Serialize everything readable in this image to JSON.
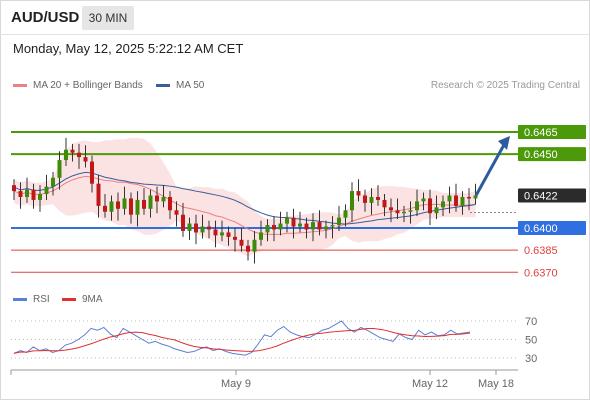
{
  "header": {
    "symbol": "AUD/USD",
    "timeframe": "30 MIN",
    "datetime": "Monday, May 12, 2025 5:22:12 AM CET"
  },
  "legend": {
    "ma20": {
      "label": "MA 20 + Bollinger Bands",
      "color": "#f08080"
    },
    "ma50": {
      "label": "MA 50",
      "color": "#3a5d9c"
    },
    "copyright": "Research © 2025 Trading Central"
  },
  "rsi_legend": {
    "rsi": {
      "label": "RSI",
      "color": "#5b7fd4"
    },
    "ma9": {
      "label": "9MA",
      "color": "#e03030"
    }
  },
  "colors": {
    "green": "#4c9a0a",
    "blue": "#2f6fe0",
    "red": "#e04040",
    "dark": "#2b2b2b",
    "arrow": "#2e5b9e",
    "band": "#fbdede"
  },
  "chart_data": [
    {
      "type": "candlestick",
      "symbol": "AUD/USD",
      "x_tick_labels": [
        "May 9",
        "May 12",
        "May 18"
      ],
      "levels": [
        {
          "value": "0.6465",
          "color": "#4c9a0a",
          "label_style": "filled"
        },
        {
          "value": "0.6450",
          "color": "#4c9a0a",
          "label_style": "filled"
        },
        {
          "value": "0.6422",
          "color": "#2b2b2b",
          "label_style": "filled"
        },
        {
          "value": "0.6400",
          "color": "#2f6fe0",
          "label_style": "filled"
        },
        {
          "value": "0.6385",
          "color": "#e04040",
          "label_style": "text"
        },
        {
          "value": "0.6370",
          "color": "#e04040",
          "label_style": "text"
        }
      ],
      "current_price": 0.6422,
      "forecast_arrow": {
        "from": 0.6422,
        "to": 0.6465
      },
      "close_series": [
        0.6425,
        0.6421,
        0.6426,
        0.6419,
        0.6423,
        0.6428,
        0.6434,
        0.6446,
        0.6453,
        0.6451,
        0.6448,
        0.6445,
        0.643,
        0.6415,
        0.6411,
        0.6418,
        0.6413,
        0.642,
        0.6409,
        0.6419,
        0.6413,
        0.6422,
        0.6418,
        0.6421,
        0.6412,
        0.6409,
        0.6398,
        0.6403,
        0.6397,
        0.6401,
        0.6399,
        0.6395,
        0.6397,
        0.6394,
        0.6392,
        0.6388,
        0.6384,
        0.6392,
        0.6397,
        0.6402,
        0.6399,
        0.6403,
        0.6407,
        0.6401,
        0.6403,
        0.6399,
        0.6404,
        0.6399,
        0.6401,
        0.6402,
        0.6407,
        0.6412,
        0.6425,
        0.6422,
        0.6417,
        0.6421,
        0.6419,
        0.6414,
        0.6412,
        0.641,
        0.6411,
        0.6412,
        0.6418,
        0.642,
        0.641,
        0.6414,
        0.6418,
        0.6422,
        0.6415,
        0.6421,
        0.642,
        0.6422
      ]
    },
    {
      "type": "line",
      "name": "RSI",
      "y_tick_labels": [
        "70",
        "50",
        "30"
      ],
      "rsi_series": [
        35,
        38,
        36,
        42,
        38,
        40,
        36,
        38,
        44,
        46,
        50,
        55,
        62,
        60,
        63,
        56,
        52,
        62,
        58,
        54,
        50,
        46,
        48,
        45,
        43,
        40,
        38,
        36,
        37,
        40,
        42,
        38,
        40,
        37,
        35,
        34,
        33,
        36,
        45,
        55,
        53,
        60,
        64,
        58,
        55,
        53,
        52,
        56,
        60,
        62,
        66,
        70,
        62,
        58,
        63,
        60,
        56,
        52,
        50,
        48,
        56,
        52,
        50,
        60,
        55,
        58,
        54,
        55,
        60,
        56,
        57,
        58
      ]
    }
  ]
}
